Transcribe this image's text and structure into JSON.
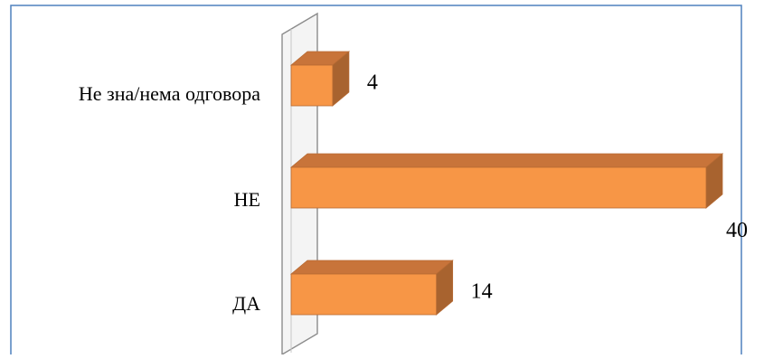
{
  "chart_data": {
    "type": "bar",
    "orientation": "horizontal",
    "style": "3d",
    "categories": [
      "Не зна/нема одговора",
      "НЕ",
      "ДА"
    ],
    "values": [
      4,
      40,
      14
    ],
    "data_labels": [
      "4",
      "40",
      "14"
    ],
    "title": "",
    "xlabel": "",
    "ylabel": "",
    "xlim": [
      0,
      40
    ],
    "grid": false,
    "legend": "none",
    "colors": {
      "bar_front": "#F79646",
      "bar_top": "#C8743A",
      "bar_side": "#A8632F",
      "bar_edge": "#B66A33",
      "frame_border": "#4F81BD",
      "wall_stroke": "#8C8C8C"
    }
  }
}
